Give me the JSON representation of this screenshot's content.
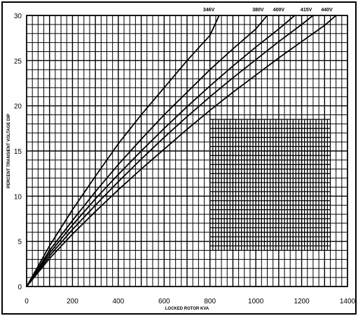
{
  "chart_data": {
    "type": "line",
    "title": "",
    "xlabel": "LOCKED ROTOR KVA",
    "ylabel": "PERCENT TRANSIENT VOLTAGE DIP",
    "xlim": [
      0,
      1400
    ],
    "ylim": [
      0,
      30
    ],
    "x_ticks": [
      "0",
      "200",
      "400",
      "600",
      "800",
      "1000",
      "1200",
      "1400"
    ],
    "y_ticks": [
      "0",
      "5",
      "10",
      "15",
      "20",
      "25",
      "30"
    ],
    "grid": true,
    "legend": "curve labels at top",
    "series": [
      {
        "name": "346V",
        "label_x": 795,
        "points": [
          [
            0,
            0
          ],
          [
            100,
            4.5
          ],
          [
            200,
            8.5
          ],
          [
            300,
            12.2
          ],
          [
            400,
            15.8
          ],
          [
            500,
            19
          ],
          [
            600,
            22
          ],
          [
            700,
            25
          ],
          [
            800,
            27.8
          ],
          [
            840,
            30
          ]
        ]
      },
      {
        "name": "380V",
        "label_x": 1010,
        "points": [
          [
            0,
            0
          ],
          [
            100,
            4
          ],
          [
            200,
            7.3
          ],
          [
            300,
            10.5
          ],
          [
            400,
            13.5
          ],
          [
            500,
            16.3
          ],
          [
            600,
            19
          ],
          [
            700,
            21.5
          ],
          [
            800,
            24
          ],
          [
            900,
            26.3
          ],
          [
            1000,
            28.5
          ],
          [
            1050,
            30
          ]
        ]
      },
      {
        "name": "400V",
        "label_x": 1100,
        "points": [
          [
            0,
            0
          ],
          [
            100,
            3.7
          ],
          [
            200,
            6.8
          ],
          [
            300,
            9.7
          ],
          [
            400,
            12.4
          ],
          [
            500,
            15
          ],
          [
            600,
            17.5
          ],
          [
            700,
            19.9
          ],
          [
            800,
            22.2
          ],
          [
            900,
            24.4
          ],
          [
            1000,
            26.5
          ],
          [
            1100,
            28.5
          ],
          [
            1170,
            30
          ]
        ]
      },
      {
        "name": "415V",
        "label_x": 1220,
        "points": [
          [
            0,
            0
          ],
          [
            100,
            3.4
          ],
          [
            200,
            6.3
          ],
          [
            300,
            9
          ],
          [
            400,
            11.6
          ],
          [
            500,
            14.1
          ],
          [
            600,
            16.5
          ],
          [
            700,
            18.8
          ],
          [
            800,
            21
          ],
          [
            900,
            23.1
          ],
          [
            1000,
            25.1
          ],
          [
            1100,
            27.1
          ],
          [
            1200,
            29
          ],
          [
            1250,
            30
          ]
        ]
      },
      {
        "name": "440V",
        "label_x": 1310,
        "points": [
          [
            0,
            0
          ],
          [
            100,
            3.1
          ],
          [
            200,
            5.8
          ],
          [
            300,
            8.3
          ],
          [
            400,
            10.7
          ],
          [
            500,
            13
          ],
          [
            600,
            15.2
          ],
          [
            700,
            17.4
          ],
          [
            800,
            19.5
          ],
          [
            900,
            21.5
          ],
          [
            1000,
            23.4
          ],
          [
            1100,
            25.3
          ],
          [
            1200,
            27.1
          ],
          [
            1300,
            28.9
          ],
          [
            1350,
            30
          ]
        ]
      }
    ],
    "colors": {
      "background": "#ffffff",
      "grid": "#000000",
      "lines": "#000000",
      "frame": "#000000"
    }
  }
}
